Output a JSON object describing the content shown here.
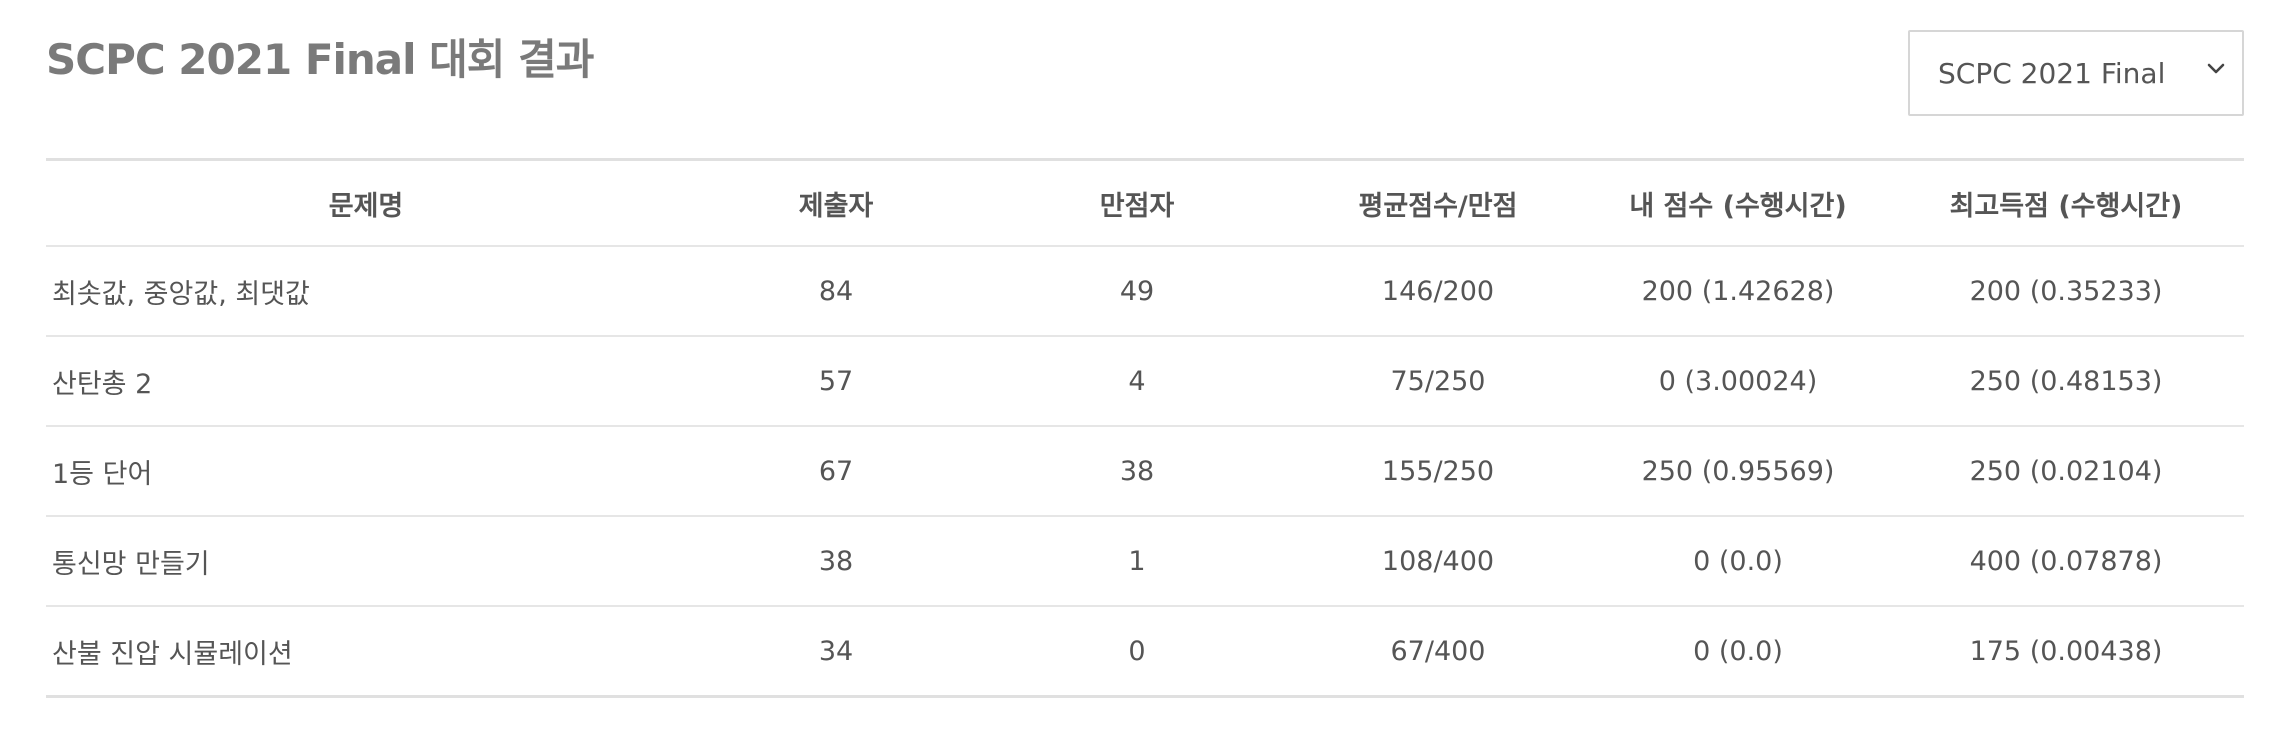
{
  "page": {
    "title": "SCPC 2021 Final 대회 결과"
  },
  "contest_select": {
    "selected": "SCPC 2021 Final",
    "icon": "chevron-down-icon"
  },
  "results_table": {
    "headers": [
      "문제명",
      "제출자",
      "만점자",
      "평균점수/만점",
      "내 점수 (수행시간)",
      "최고득점 (수행시간)"
    ],
    "rows": [
      [
        "최솟값, 중앙값, 최댓값",
        "84",
        "49",
        "146/200",
        "200 (1.42628)",
        "200 (0.35233)"
      ],
      [
        "산탄총 2",
        "57",
        "4",
        "75/250",
        "0 (3.00024)",
        "250 (0.48153)"
      ],
      [
        "1등 단어",
        "67",
        "38",
        "155/250",
        "250 (0.95569)",
        "250 (0.02104)"
      ],
      [
        "통신망 만들기",
        "38",
        "1",
        "108/400",
        "0 (0.0)",
        "400 (0.07878)"
      ],
      [
        "산불 진압 시뮬레이션",
        "34",
        "0",
        "67/400",
        "0 (0.0)",
        "175 (0.00438)"
      ]
    ]
  },
  "colors": {
    "title": "#7a7a7a",
    "text": "#555555",
    "border": "#e0e0e0"
  }
}
